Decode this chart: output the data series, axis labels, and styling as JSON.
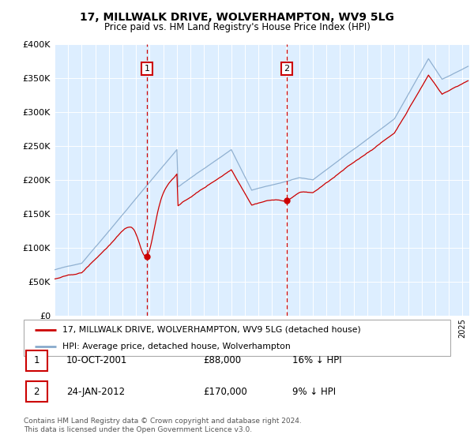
{
  "title": "17, MILLWALK DRIVE, WOLVERHAMPTON, WV9 5LG",
  "subtitle": "Price paid vs. HM Land Registry's House Price Index (HPI)",
  "property_label": "17, MILLWALK DRIVE, WOLVERHAMPTON, WV9 5LG (detached house)",
  "hpi_label": "HPI: Average price, detached house, Wolverhampton",
  "sale1_label": "10-OCT-2001",
  "sale1_price": 88000,
  "sale1_note": "16% ↓ HPI",
  "sale2_label": "24-JAN-2012",
  "sale2_price": 170000,
  "sale2_note": "9% ↓ HPI",
  "footer": "Contains HM Land Registry data © Crown copyright and database right 2024.\nThis data is licensed under the Open Government Licence v3.0.",
  "property_color": "#cc0000",
  "hpi_color": "#88aacc",
  "shade_color": "#ddeeff",
  "plot_bg": "#ffffff",
  "grid_color": "#ffffff",
  "ylim": [
    0,
    400000
  ],
  "yticks": [
    0,
    50000,
    100000,
    150000,
    200000,
    250000,
    300000,
    350000,
    400000
  ],
  "sale1_x": 2001.79,
  "sale2_x": 2012.06,
  "xmin": 1995,
  "xmax": 2025.5
}
